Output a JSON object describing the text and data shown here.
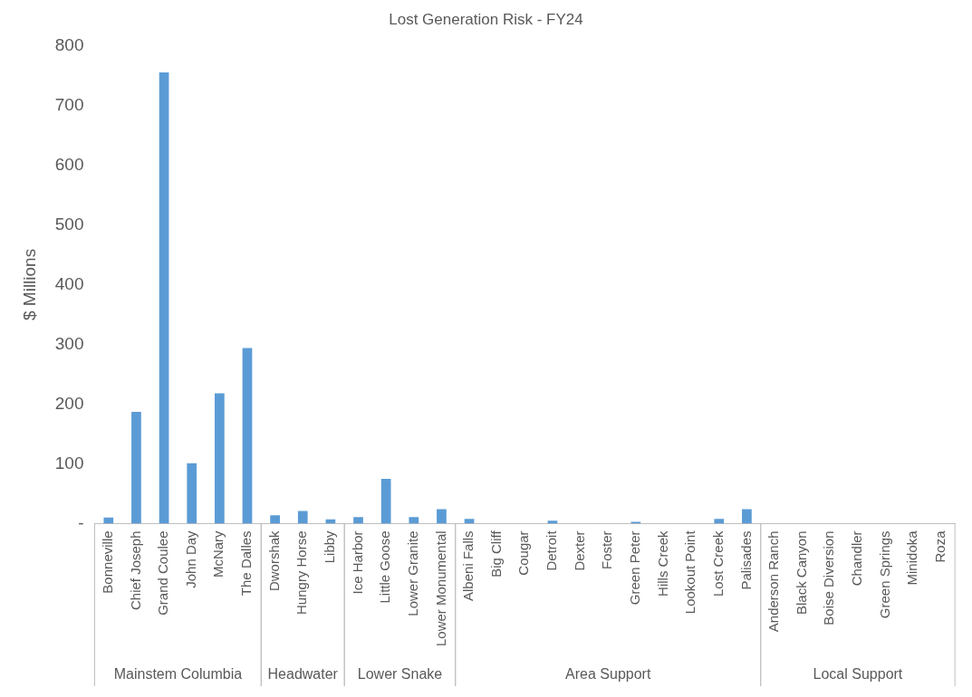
{
  "chart_data": {
    "type": "bar",
    "title": "Lost Generation Risk - FY24",
    "ylabel": "$ Millions",
    "categories": [
      "Bonneville",
      "Chief Joseph",
      "Grand Coulee",
      "John Day",
      "McNary",
      "The Dalles",
      "Dworshak",
      "Hungry Horse",
      "Libby",
      "Ice Harbor",
      "Little Goose",
      "Lower Granite",
      "Lower Monumental",
      "Albeni Falls",
      "Big Cliff",
      "Cougar",
      "Detroit",
      "Dexter",
      "Foster",
      "Green Peter",
      "Hills Creek",
      "Lookout Point",
      "Lost Creek",
      "Palisades",
      "Anderson Ranch",
      "Black Canyon",
      "Boise Diversion",
      "Chandler",
      "Green Springs",
      "Minidoka",
      "Roza"
    ],
    "values": [
      10,
      187,
      755,
      101,
      218,
      294,
      14,
      21,
      7,
      11,
      75,
      11,
      24,
      8,
      0,
      0,
      5,
      0,
      0,
      3,
      0,
      0,
      8,
      24,
      0,
      0,
      0,
      0,
      0,
      0,
      0
    ],
    "color": "#5b9bd5",
    "ylim": [
      0,
      800
    ],
    "yticks": [
      {
        "value": 0,
        "label": "-"
      },
      100,
      200,
      300,
      400,
      500,
      600,
      700,
      800
    ],
    "grid": false,
    "annotations": [
      "Mainstem Columbia",
      "Headwater",
      "Lower Snake",
      "Area Support",
      "Local Support"
    ]
  }
}
